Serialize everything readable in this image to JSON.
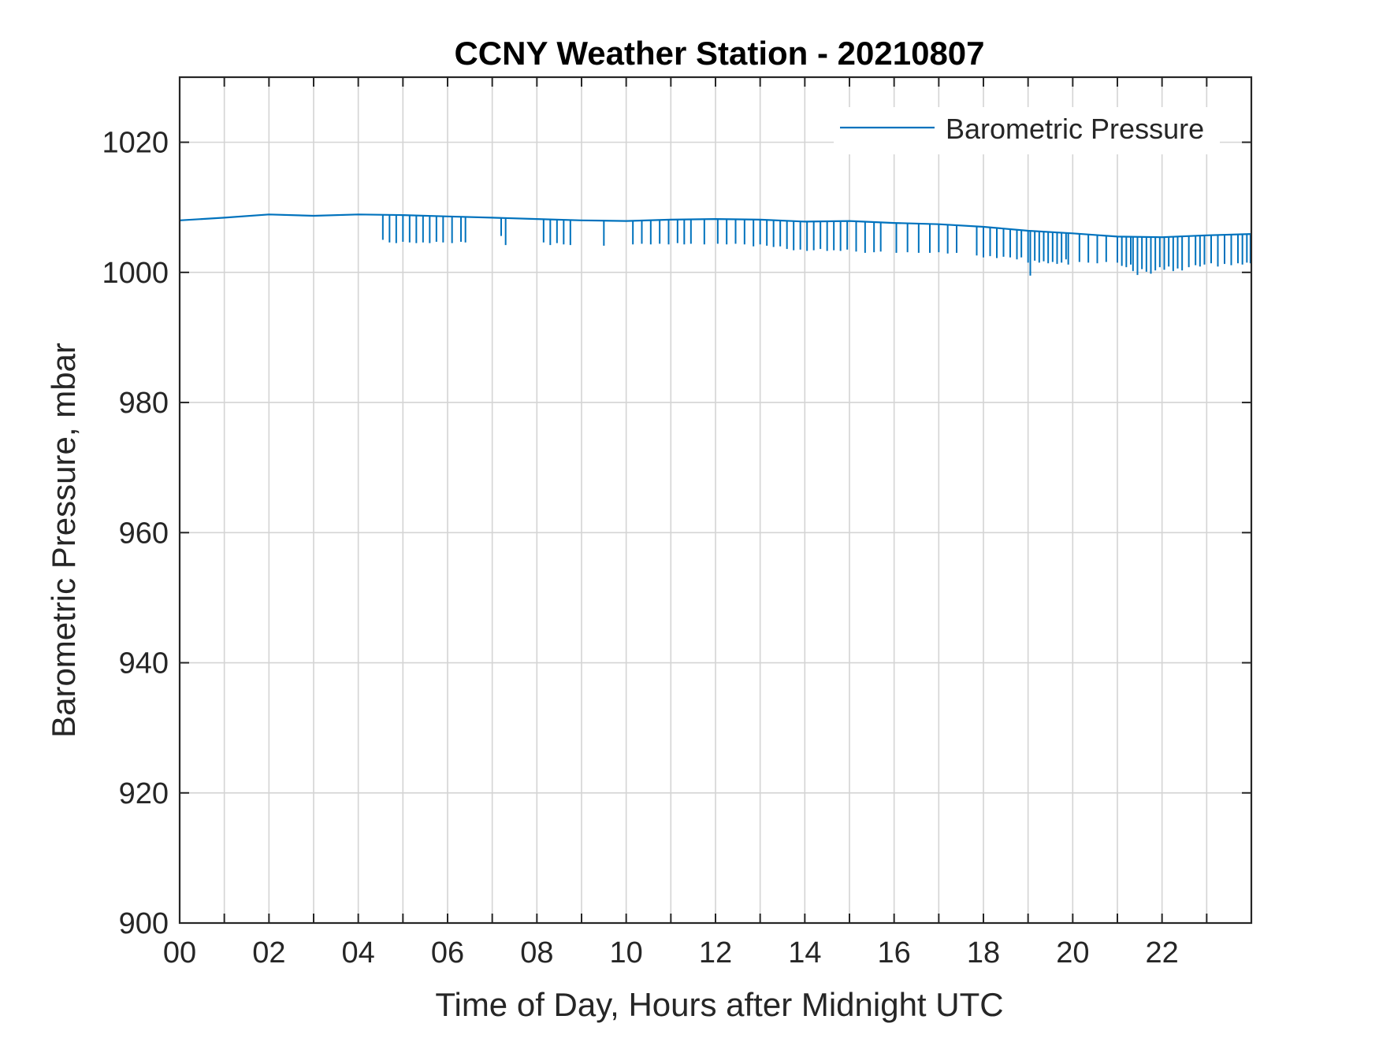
{
  "chart_data": {
    "type": "line",
    "title": "CCNY Weather Station - 20210807",
    "xlabel": "Time of Day, Hours after Midnight UTC",
    "ylabel": "Barometric Pressure, mbar",
    "xlim": [
      0,
      24
    ],
    "ylim": [
      900,
      1030
    ],
    "x_ticks": [
      0,
      2,
      4,
      6,
      8,
      10,
      12,
      14,
      16,
      18,
      20,
      22
    ],
    "x_tick_labels": [
      "00",
      "02",
      "04",
      "06",
      "08",
      "10",
      "12",
      "14",
      "16",
      "18",
      "20",
      "22"
    ],
    "x_minor_ticks": [
      1,
      3,
      5,
      7,
      9,
      11,
      13,
      15,
      17,
      19,
      21,
      23
    ],
    "y_ticks": [
      900,
      920,
      940,
      960,
      980,
      1000,
      1020
    ],
    "y_tick_labels": [
      "900",
      "920",
      "940",
      "960",
      "980",
      "1000",
      "1020"
    ],
    "grid": true,
    "legend_position": "top-right",
    "series": [
      {
        "name": "Barometric Pressure",
        "color": "#0072BD",
        "baseline": {
          "x": [
            0,
            1,
            2,
            3,
            4,
            5,
            6,
            7,
            8,
            9,
            10,
            11,
            12,
            13,
            14,
            15,
            16,
            17,
            18,
            19,
            20,
            21,
            22,
            23,
            24
          ],
          "y": [
            1008.0,
            1008.4,
            1008.9,
            1008.7,
            1008.9,
            1008.8,
            1008.6,
            1008.4,
            1008.2,
            1008.0,
            1007.9,
            1008.1,
            1008.2,
            1008.1,
            1007.8,
            1007.9,
            1007.6,
            1007.4,
            1007.0,
            1006.4,
            1006.0,
            1005.5,
            1005.4,
            1005.7,
            1005.9
          ]
        },
        "dropout_spikes": [
          {
            "x": 4.55,
            "y": 1005.0
          },
          {
            "x": 4.7,
            "y": 1004.6
          },
          {
            "x": 4.85,
            "y": 1004.5
          },
          {
            "x": 5.0,
            "y": 1004.7
          },
          {
            "x": 5.15,
            "y": 1004.6
          },
          {
            "x": 5.3,
            "y": 1004.5
          },
          {
            "x": 5.45,
            "y": 1004.6
          },
          {
            "x": 5.6,
            "y": 1004.5
          },
          {
            "x": 5.75,
            "y": 1004.7
          },
          {
            "x": 5.9,
            "y": 1004.6
          },
          {
            "x": 6.1,
            "y": 1004.5
          },
          {
            "x": 6.3,
            "y": 1004.7
          },
          {
            "x": 6.4,
            "y": 1004.6
          },
          {
            "x": 7.2,
            "y": 1005.6
          },
          {
            "x": 7.3,
            "y": 1004.2
          },
          {
            "x": 8.15,
            "y": 1004.6
          },
          {
            "x": 8.3,
            "y": 1004.2
          },
          {
            "x": 8.45,
            "y": 1004.5
          },
          {
            "x": 8.6,
            "y": 1004.3
          },
          {
            "x": 8.75,
            "y": 1004.2
          },
          {
            "x": 9.5,
            "y": 1004.1
          },
          {
            "x": 10.15,
            "y": 1004.3
          },
          {
            "x": 10.35,
            "y": 1004.4
          },
          {
            "x": 10.55,
            "y": 1004.3
          },
          {
            "x": 10.75,
            "y": 1004.4
          },
          {
            "x": 10.95,
            "y": 1004.3
          },
          {
            "x": 11.15,
            "y": 1004.5
          },
          {
            "x": 11.3,
            "y": 1004.3
          },
          {
            "x": 11.45,
            "y": 1004.4
          },
          {
            "x": 11.75,
            "y": 1004.3
          },
          {
            "x": 12.05,
            "y": 1004.4
          },
          {
            "x": 12.25,
            "y": 1004.3
          },
          {
            "x": 12.45,
            "y": 1004.4
          },
          {
            "x": 12.65,
            "y": 1004.3
          },
          {
            "x": 12.85,
            "y": 1004.0
          },
          {
            "x": 13.0,
            "y": 1004.3
          },
          {
            "x": 13.15,
            "y": 1004.1
          },
          {
            "x": 13.3,
            "y": 1003.9
          },
          {
            "x": 13.45,
            "y": 1004.0
          },
          {
            "x": 13.6,
            "y": 1003.6
          },
          {
            "x": 13.75,
            "y": 1003.4
          },
          {
            "x": 13.9,
            "y": 1003.5
          },
          {
            "x": 14.05,
            "y": 1003.3
          },
          {
            "x": 14.2,
            "y": 1003.4
          },
          {
            "x": 14.35,
            "y": 1003.6
          },
          {
            "x": 14.5,
            "y": 1003.3
          },
          {
            "x": 14.65,
            "y": 1003.4
          },
          {
            "x": 14.8,
            "y": 1003.3
          },
          {
            "x": 14.95,
            "y": 1003.5
          },
          {
            "x": 15.15,
            "y": 1003.2
          },
          {
            "x": 15.35,
            "y": 1003.0
          },
          {
            "x": 15.55,
            "y": 1003.1
          },
          {
            "x": 15.7,
            "y": 1003.2
          },
          {
            "x": 16.05,
            "y": 1003.0
          },
          {
            "x": 16.3,
            "y": 1003.1
          },
          {
            "x": 16.55,
            "y": 1003.0
          },
          {
            "x": 16.8,
            "y": 1003.0
          },
          {
            "x": 17.0,
            "y": 1003.1
          },
          {
            "x": 17.2,
            "y": 1002.9
          },
          {
            "x": 17.4,
            "y": 1003.0
          },
          {
            "x": 17.85,
            "y": 1002.6
          },
          {
            "x": 18.0,
            "y": 1002.3
          },
          {
            "x": 18.15,
            "y": 1002.5
          },
          {
            "x": 18.3,
            "y": 1002.2
          },
          {
            "x": 18.45,
            "y": 1002.4
          },
          {
            "x": 18.6,
            "y": 1002.3
          },
          {
            "x": 18.75,
            "y": 1002.0
          },
          {
            "x": 18.85,
            "y": 1002.3
          },
          {
            "x": 19.0,
            "y": 1001.5
          },
          {
            "x": 19.05,
            "y": 999.5
          },
          {
            "x": 19.15,
            "y": 1001.8
          },
          {
            "x": 19.25,
            "y": 1001.5
          },
          {
            "x": 19.35,
            "y": 1001.7
          },
          {
            "x": 19.45,
            "y": 1001.4
          },
          {
            "x": 19.55,
            "y": 1001.6
          },
          {
            "x": 19.65,
            "y": 1001.3
          },
          {
            "x": 19.75,
            "y": 1001.5
          },
          {
            "x": 19.85,
            "y": 1002.0
          },
          {
            "x": 19.9,
            "y": 1001.2
          },
          {
            "x": 20.15,
            "y": 1001.6
          },
          {
            "x": 20.35,
            "y": 1001.5
          },
          {
            "x": 20.55,
            "y": 1001.4
          },
          {
            "x": 20.75,
            "y": 1001.6
          },
          {
            "x": 21.0,
            "y": 1001.5
          },
          {
            "x": 21.1,
            "y": 1001.0
          },
          {
            "x": 21.2,
            "y": 1000.8
          },
          {
            "x": 21.3,
            "y": 1001.2
          },
          {
            "x": 21.35,
            "y": 1000.2
          },
          {
            "x": 21.45,
            "y": 999.6
          },
          {
            "x": 21.55,
            "y": 1000.5
          },
          {
            "x": 21.65,
            "y": 1000.1
          },
          {
            "x": 21.75,
            "y": 999.8
          },
          {
            "x": 21.85,
            "y": 1000.3
          },
          {
            "x": 21.95,
            "y": 1000.8
          },
          {
            "x": 22.05,
            "y": 1000.4
          },
          {
            "x": 22.15,
            "y": 1000.9
          },
          {
            "x": 22.25,
            "y": 1000.2
          },
          {
            "x": 22.35,
            "y": 1000.6
          },
          {
            "x": 22.45,
            "y": 1000.3
          },
          {
            "x": 22.6,
            "y": 1000.8
          },
          {
            "x": 22.75,
            "y": 1001.1
          },
          {
            "x": 22.85,
            "y": 1000.9
          },
          {
            "x": 22.95,
            "y": 1001.2
          },
          {
            "x": 23.1,
            "y": 1001.4
          },
          {
            "x": 23.25,
            "y": 1000.9
          },
          {
            "x": 23.4,
            "y": 1001.3
          },
          {
            "x": 23.55,
            "y": 1001.1
          },
          {
            "x": 23.7,
            "y": 1001.4
          },
          {
            "x": 23.8,
            "y": 1001.2
          },
          {
            "x": 23.9,
            "y": 1001.5
          },
          {
            "x": 23.98,
            "y": 1001.4
          }
        ]
      }
    ]
  }
}
